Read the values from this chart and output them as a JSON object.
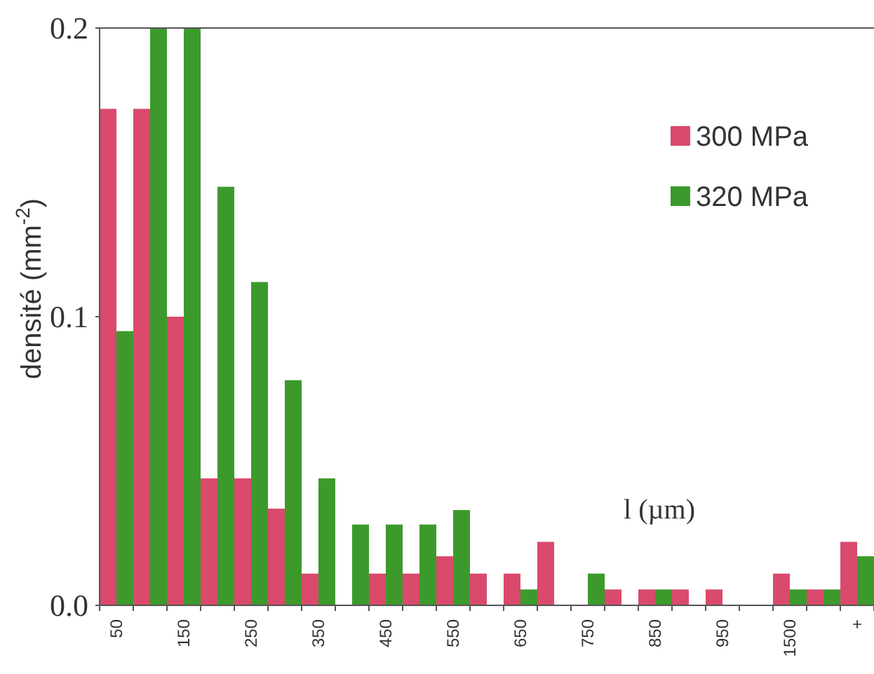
{
  "chart_data": {
    "type": "bar",
    "ylabel": "densité (mm$^{-2}$)",
    "xlabel": "l (µm)",
    "categories": [
      "50",
      null,
      "150",
      null,
      "250",
      null,
      "350",
      null,
      "450",
      null,
      "550",
      null,
      "650",
      null,
      "750",
      null,
      "850",
      null,
      "950",
      null,
      "1500",
      null,
      "+"
    ],
    "series": [
      {
        "name": "300 MPa",
        "color": "#d94a6c",
        "values": [
          0.172,
          0.172,
          0.1,
          0.044,
          0.044,
          0.0335,
          0.011,
          0,
          0.011,
          0.011,
          0.017,
          0.011,
          0.011,
          0.022,
          0,
          0.0055,
          0.0055,
          0.0055,
          0.0055,
          0,
          0.011,
          0.0055,
          0.022
        ]
      },
      {
        "name": "320 MPa",
        "color": "#3c9a2c",
        "values": [
          0.095,
          0.2,
          0.2,
          0.145,
          0.112,
          0.078,
          0.044,
          0.028,
          0.028,
          0.028,
          0.033,
          0,
          0.0055,
          0,
          0.011,
          0,
          0.0055,
          0,
          0,
          0,
          0.0055,
          0.0055,
          0.017
        ]
      }
    ],
    "ylim": [
      0,
      0.2
    ],
    "yticks": [
      {
        "value": 0,
        "label": "0.0"
      },
      {
        "value": 0.1,
        "label": "0.1"
      },
      {
        "value": 0.2,
        "label": "0.2"
      }
    ],
    "legend": "top right",
    "grid": false
  }
}
